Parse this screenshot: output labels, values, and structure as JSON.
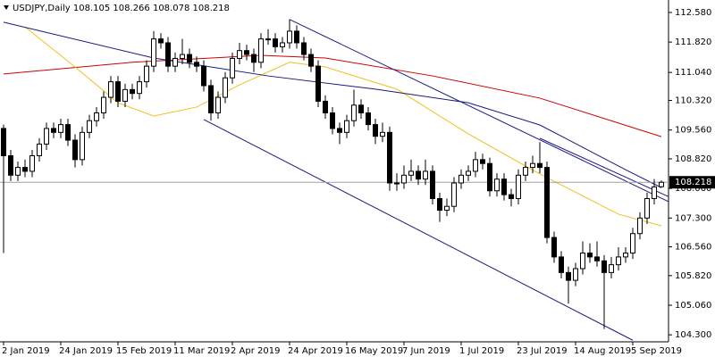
{
  "chart_data": {
    "type": "candlestick",
    "title": "USDJPY,Daily  108.105 108.266 108.078 108.218",
    "ylim": [
      104.12,
      112.9
    ],
    "xlim": [
      -0.5,
      93
    ],
    "yticks": [
      {
        "value": 112.58,
        "label": "112.580"
      },
      {
        "value": 111.82,
        "label": "111.820"
      },
      {
        "value": 111.04,
        "label": "111.040"
      },
      {
        "value": 110.32,
        "label": "110.320"
      },
      {
        "value": 109.56,
        "label": "109.560"
      },
      {
        "value": 108.82,
        "label": "108.820"
      },
      {
        "value": 108.06,
        "label": "108.060"
      },
      {
        "value": 107.3,
        "label": "107.300"
      },
      {
        "value": 106.56,
        "label": "106.560"
      },
      {
        "value": 105.82,
        "label": "105.820"
      },
      {
        "value": 105.06,
        "label": "105.060"
      },
      {
        "value": 104.3,
        "label": "104.300"
      }
    ],
    "xticks": [
      {
        "value": 0,
        "label": "2 Jan 2019"
      },
      {
        "value": 8,
        "label": "24 Jan 2019"
      },
      {
        "value": 16,
        "label": "15 Feb 2019"
      },
      {
        "value": 24,
        "label": "11 Mar 2019"
      },
      {
        "value": 32,
        "label": "2 Apr 2019"
      },
      {
        "value": 40,
        "label": "24 Apr 2019"
      },
      {
        "value": 48,
        "label": "16 May 2019"
      },
      {
        "value": 56,
        "label": "7 Jun 2019"
      },
      {
        "value": 64,
        "label": "1 Jul 2019"
      },
      {
        "value": 72,
        "label": "23 Jul 2019"
      },
      {
        "value": 80,
        "label": "14 Aug 2019"
      },
      {
        "value": 88,
        "label": "5 Sep 2019"
      }
    ],
    "last_price": {
      "value": 108.218,
      "label": "108.218"
    },
    "open": [
      109.6,
      108.9,
      108.4,
      108.6,
      108.5,
      108.9,
      109.2,
      109.6,
      109.5,
      109.7,
      109.3,
      108.8,
      109.5,
      109.8,
      110.0,
      110.4,
      110.8,
      110.3,
      110.6,
      110.5,
      110.8,
      111.2,
      111.9,
      111.8,
      111.2,
      111.4,
      111.5,
      111.3,
      111.2,
      110.7,
      110.0,
      110.4,
      110.9,
      111.4,
      111.6,
      111.5,
      111.3,
      111.9,
      111.9,
      111.7,
      111.8,
      112.1,
      111.8,
      111.5,
      111.2,
      110.3,
      110.0,
      109.6,
      109.5,
      109.8,
      110.2,
      110.0,
      109.7,
      109.4,
      109.5,
      108.2,
      108.2,
      108.4,
      108.5,
      108.3,
      108.5,
      107.8,
      107.5,
      107.6,
      108.2,
      108.4,
      108.5,
      108.8,
      108.7,
      108.0,
      108.3,
      107.9,
      107.8,
      108.4,
      108.6,
      108.7,
      108.6,
      106.8,
      106.3,
      105.9,
      105.7,
      106.0,
      106.4,
      106.3,
      106.2,
      105.9,
      106.1,
      106.3,
      106.4,
      106.9,
      107.3,
      107.8,
      108.105
    ],
    "high": [
      109.7,
      109.05,
      108.75,
      108.8,
      109.05,
      109.35,
      109.75,
      109.75,
      109.85,
      109.85,
      109.45,
      109.65,
      109.95,
      110.15,
      110.55,
      110.95,
      110.95,
      110.75,
      110.75,
      110.95,
      111.35,
      112.1,
      112.05,
      111.95,
      111.55,
      111.9,
      111.65,
      111.45,
      111.35,
      110.85,
      110.55,
      111.05,
      111.55,
      111.8,
      111.75,
      111.65,
      112.05,
      112.15,
      112.05,
      111.95,
      112.4,
      112.25,
      111.95,
      111.65,
      111.35,
      110.45,
      110.15,
      109.75,
      109.95,
      110.6,
      110.35,
      110.15,
      109.85,
      109.75,
      109.65,
      108.45,
      108.65,
      108.8,
      108.65,
      108.8,
      108.65,
      107.95,
      107.8,
      108.35,
      108.55,
      108.65,
      109.0,
      108.95,
      108.85,
      108.45,
      108.45,
      108.05,
      108.55,
      108.75,
      108.9,
      109.25,
      108.75,
      106.95,
      106.45,
      106.05,
      106.15,
      106.7,
      106.65,
      106.7,
      106.35,
      106.3,
      106.55,
      106.55,
      107.05,
      107.45,
      107.95,
      108.3,
      108.266
    ],
    "low": [
      106.4,
      108.25,
      108.25,
      108.35,
      108.35,
      108.75,
      109.05,
      109.35,
      109.35,
      109.15,
      108.6,
      108.65,
      109.35,
      109.65,
      109.85,
      110.25,
      110.15,
      110.15,
      110.35,
      110.35,
      110.65,
      111.05,
      111.65,
      111.05,
      111.05,
      111.25,
      111.15,
      111.05,
      110.55,
      109.8,
      109.85,
      110.25,
      110.75,
      111.25,
      111.35,
      111.05,
      111.15,
      111.75,
      111.55,
      111.55,
      111.65,
      111.65,
      111.35,
      111.05,
      110.15,
      109.85,
      109.45,
      109.2,
      109.35,
      109.65,
      109.85,
      109.55,
      109.2,
      109.25,
      108.0,
      108.0,
      108.05,
      108.25,
      108.15,
      108.15,
      107.65,
      107.2,
      107.35,
      107.45,
      108.05,
      108.25,
      108.35,
      108.55,
      107.85,
      107.85,
      107.75,
      107.6,
      107.65,
      108.25,
      108.45,
      108.45,
      106.65,
      106.15,
      105.75,
      105.1,
      105.55,
      105.85,
      106.15,
      106.05,
      104.45,
      105.75,
      105.95,
      106.15,
      106.25,
      106.75,
      107.15,
      107.65,
      108.078
    ],
    "close": [
      108.9,
      108.4,
      108.6,
      108.5,
      108.9,
      109.2,
      109.6,
      109.5,
      109.7,
      109.3,
      108.8,
      109.5,
      109.8,
      110.0,
      110.4,
      110.8,
      110.3,
      110.6,
      110.5,
      110.8,
      111.2,
      111.9,
      111.8,
      111.2,
      111.4,
      111.5,
      111.3,
      111.2,
      110.7,
      110.0,
      110.4,
      110.9,
      111.4,
      111.6,
      111.5,
      111.3,
      111.9,
      111.9,
      111.7,
      111.8,
      112.1,
      111.8,
      111.5,
      111.2,
      110.3,
      110.0,
      109.6,
      109.5,
      109.8,
      110.2,
      110.0,
      109.7,
      109.4,
      109.5,
      108.2,
      108.2,
      108.4,
      108.5,
      108.3,
      108.5,
      107.8,
      107.5,
      107.6,
      108.2,
      108.4,
      108.5,
      108.8,
      108.7,
      108.0,
      108.3,
      107.9,
      107.8,
      108.4,
      108.6,
      108.7,
      108.6,
      106.8,
      106.3,
      105.9,
      105.7,
      106.0,
      106.4,
      106.3,
      106.2,
      105.9,
      106.1,
      106.3,
      106.4,
      106.9,
      107.3,
      107.8,
      108.1,
      108.218
    ],
    "lines": [
      {
        "color": "#cc0000",
        "x": [
          0,
          18,
          36,
          45,
          60,
          75,
          92
        ],
        "values": [
          111.0,
          111.3,
          111.48,
          111.41,
          110.95,
          110.38,
          109.39
        ]
      },
      {
        "color": "#f0c020",
        "x": [
          3,
          10,
          16,
          21,
          27,
          33,
          40,
          45,
          55,
          65,
          75,
          86,
          92
        ],
        "values": [
          112.21,
          111.18,
          110.26,
          109.92,
          110.15,
          110.72,
          111.3,
          111.18,
          110.61,
          109.46,
          108.43,
          107.4,
          107.1
        ]
      },
      {
        "color": "#1a1a80",
        "x": [
          0,
          21,
          37,
          52,
          65,
          75,
          87,
          92
        ],
        "values": [
          112.33,
          111.41,
          110.95,
          110.61,
          110.26,
          109.69,
          108.54,
          108.08
        ]
      },
      {
        "color": "#1a1a80",
        "x": [
          40,
          93
        ],
        "values": [
          112.4,
          107.72
        ]
      },
      {
        "color": "#1a1a80",
        "x": [
          28,
          88
        ],
        "values": [
          109.83,
          104.16
        ]
      },
      {
        "color": "#1a1a80",
        "x": [
          75,
          93
        ],
        "values": [
          109.35,
          107.85
        ]
      }
    ]
  }
}
